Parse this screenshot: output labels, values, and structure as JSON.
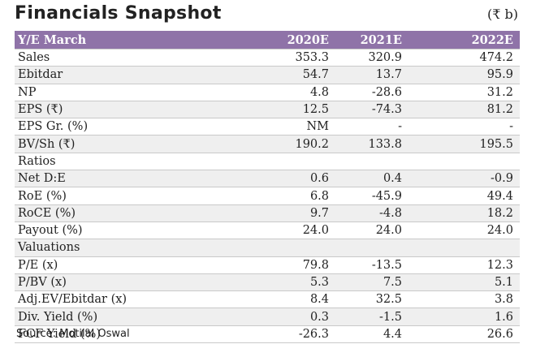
{
  "header": {
    "title": "Financials Snapshot",
    "unit": "(₹ b)"
  },
  "table": {
    "columns": [
      "Y/E March",
      "2020E",
      "2021E",
      "2022E"
    ],
    "rows": [
      [
        "Sales",
        "353.3",
        "320.9",
        "474.2"
      ],
      [
        "Ebitdar",
        "54.7",
        "13.7",
        "95.9"
      ],
      [
        "NP",
        "4.8",
        "-28.6",
        "31.2"
      ],
      [
        "EPS (₹)",
        "12.5",
        "-74.3",
        "81.2"
      ],
      [
        "EPS Gr. (%)",
        "NM",
        "-",
        "-"
      ],
      [
        "BV/Sh (₹)",
        "190.2",
        "133.8",
        "195.5"
      ],
      [
        "Ratios"
      ],
      [
        "Net D:E",
        "0.6",
        "0.4",
        "-0.9"
      ],
      [
        "RoE (%)",
        "6.8",
        "-45.9",
        "49.4"
      ],
      [
        "RoCE (%)",
        "9.7",
        "-4.8",
        "18.2"
      ],
      [
        "Payout (%)",
        "24.0",
        "24.0",
        "24.0"
      ],
      [
        "Valuations"
      ],
      [
        "P/E (x)",
        "79.8",
        "-13.5",
        "12.3"
      ],
      [
        "P/BV (x)",
        "5.3",
        "7.5",
        "5.1"
      ],
      [
        "Adj.EV/Ebitdar (x)",
        "8.4",
        "32.5",
        "3.8"
      ],
      [
        "Div. Yield (%)",
        "0.3",
        "-1.5",
        "1.6"
      ],
      [
        "FCF Yield (%)",
        "-26.3",
        "4.4",
        "26.6"
      ]
    ]
  },
  "footer": {
    "source": "Source: Motilal Oswal"
  }
}
